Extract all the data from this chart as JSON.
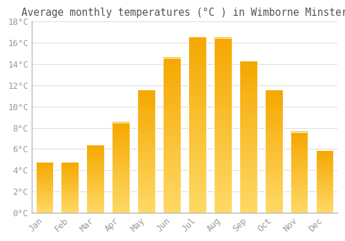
{
  "title": "Average monthly temperatures (°C ) in Wimborne Minster",
  "months": [
    "Jan",
    "Feb",
    "Mar",
    "Apr",
    "May",
    "Jun",
    "Jul",
    "Aug",
    "Sep",
    "Oct",
    "Nov",
    "Dec"
  ],
  "values": [
    4.8,
    4.8,
    6.4,
    8.5,
    11.6,
    14.6,
    16.6,
    16.5,
    14.3,
    11.6,
    7.6,
    5.9
  ],
  "bar_color_dark": "#F5A800",
  "bar_color_light": "#FFD966",
  "background_color": "#FFFFFF",
  "plot_bg_color": "#FFFFFF",
  "grid_color": "#DDDDDD",
  "text_color": "#999999",
  "spine_color": "#AAAAAA",
  "ylim": [
    0,
    18
  ],
  "ytick_step": 2,
  "title_fontsize": 10.5,
  "tick_fontsize": 9,
  "font_family": "monospace"
}
